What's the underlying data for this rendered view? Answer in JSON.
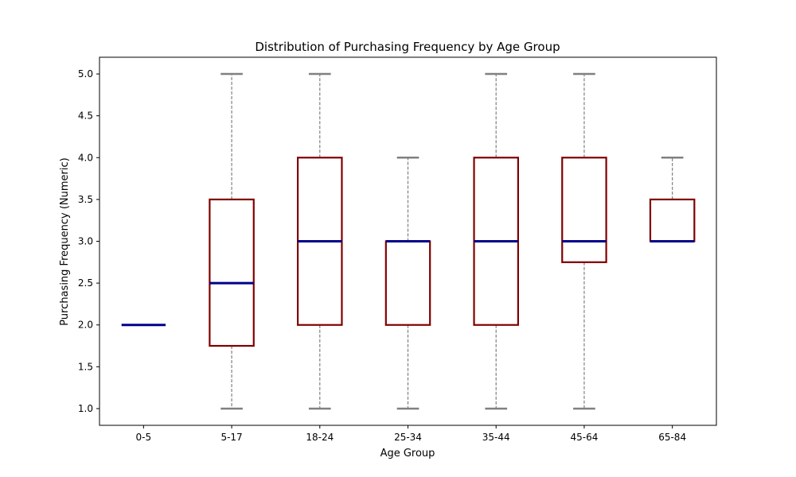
{
  "chart_data": {
    "type": "boxplot",
    "title": "Distribution of Purchasing Frequency by Age Group",
    "xlabel": "Age Group",
    "ylabel": "Purchasing Frequency (Numeric)",
    "categories": [
      "0-5",
      "5-17",
      "18-24",
      "25-34",
      "35-44",
      "45-64",
      "65-84"
    ],
    "boxes": [
      {
        "category": "0-5",
        "whisker_low": 2.0,
        "q1": 2.0,
        "median": 2.0,
        "q3": 2.0,
        "whisker_high": 2.0
      },
      {
        "category": "5-17",
        "whisker_low": 1.0,
        "q1": 1.75,
        "median": 2.5,
        "q3": 3.5,
        "whisker_high": 5.0
      },
      {
        "category": "18-24",
        "whisker_low": 1.0,
        "q1": 2.0,
        "median": 3.0,
        "q3": 4.0,
        "whisker_high": 5.0
      },
      {
        "category": "25-34",
        "whisker_low": 1.0,
        "q1": 2.0,
        "median": 3.0,
        "q3": 3.0,
        "whisker_high": 4.0
      },
      {
        "category": "35-44",
        "whisker_low": 1.0,
        "q1": 2.0,
        "median": 3.0,
        "q3": 4.0,
        "whisker_high": 5.0
      },
      {
        "category": "45-64",
        "whisker_low": 1.0,
        "q1": 2.75,
        "median": 3.0,
        "q3": 4.0,
        "whisker_high": 5.0
      },
      {
        "category": "65-84",
        "whisker_low": 3.0,
        "q1": 3.0,
        "median": 3.0,
        "q3": 3.5,
        "whisker_high": 4.0
      }
    ],
    "ylim": [
      0.8,
      5.2
    ],
    "yticks": [
      "1.0",
      "1.5",
      "2.0",
      "2.5",
      "3.0",
      "3.5",
      "4.0",
      "4.5",
      "5.0"
    ],
    "grid": false,
    "colors": {
      "box": "#800000",
      "median": "#00008b",
      "whisker": "#808080",
      "cap": "#808080"
    }
  }
}
